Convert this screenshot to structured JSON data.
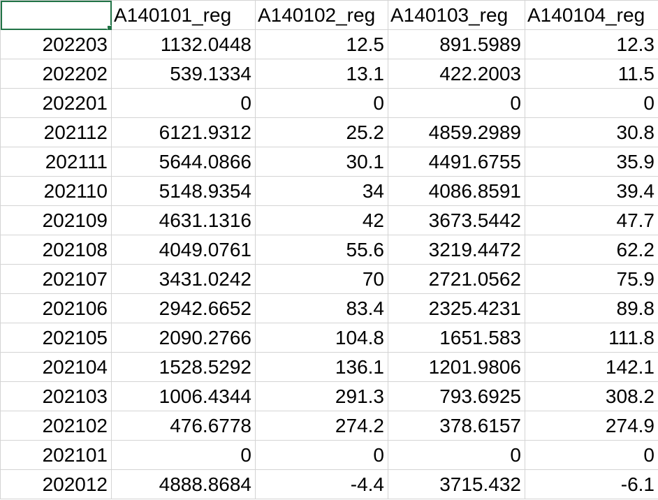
{
  "sheet": {
    "header": {
      "corner": "",
      "columns": [
        "A140101_reg",
        "A140102_reg",
        "A140103_reg",
        "A140104_reg"
      ]
    },
    "rows": [
      [
        "202203",
        "1132.0448",
        "12.5",
        "891.5989",
        "12.3"
      ],
      [
        "202202",
        "539.1334",
        "13.1",
        "422.2003",
        "11.5"
      ],
      [
        "202201",
        "0",
        "0",
        "0",
        "0"
      ],
      [
        "202112",
        "6121.9312",
        "25.2",
        "4859.2989",
        "30.8"
      ],
      [
        "202111",
        "5644.0866",
        "30.1",
        "4491.6755",
        "35.9"
      ],
      [
        "202110",
        "5148.9354",
        "34",
        "4086.8591",
        "39.4"
      ],
      [
        "202109",
        "4631.1316",
        "42",
        "3673.5442",
        "47.7"
      ],
      [
        "202108",
        "4049.0761",
        "55.6",
        "3219.4472",
        "62.2"
      ],
      [
        "202107",
        "3431.0242",
        "70",
        "2721.0562",
        "75.9"
      ],
      [
        "202106",
        "2942.6652",
        "83.4",
        "2325.4231",
        "89.8"
      ],
      [
        "202105",
        "2090.2766",
        "104.8",
        "1651.583",
        "111.8"
      ],
      [
        "202104",
        "1528.5292",
        "136.1",
        "1201.9806",
        "142.1"
      ],
      [
        "202103",
        "1006.4344",
        "291.3",
        "793.6925",
        "308.2"
      ],
      [
        "202102",
        "476.6778",
        "274.2",
        "378.6157",
        "274.9"
      ],
      [
        "202101",
        "0",
        "0",
        "0",
        "0"
      ],
      [
        "202012",
        "4888.8684",
        "-4.4",
        "3715.432",
        "-6.1"
      ]
    ]
  },
  "colors": {
    "gridline": "#d4d4d4",
    "selection": "#217346",
    "text": "#000000",
    "background": "#ffffff"
  }
}
